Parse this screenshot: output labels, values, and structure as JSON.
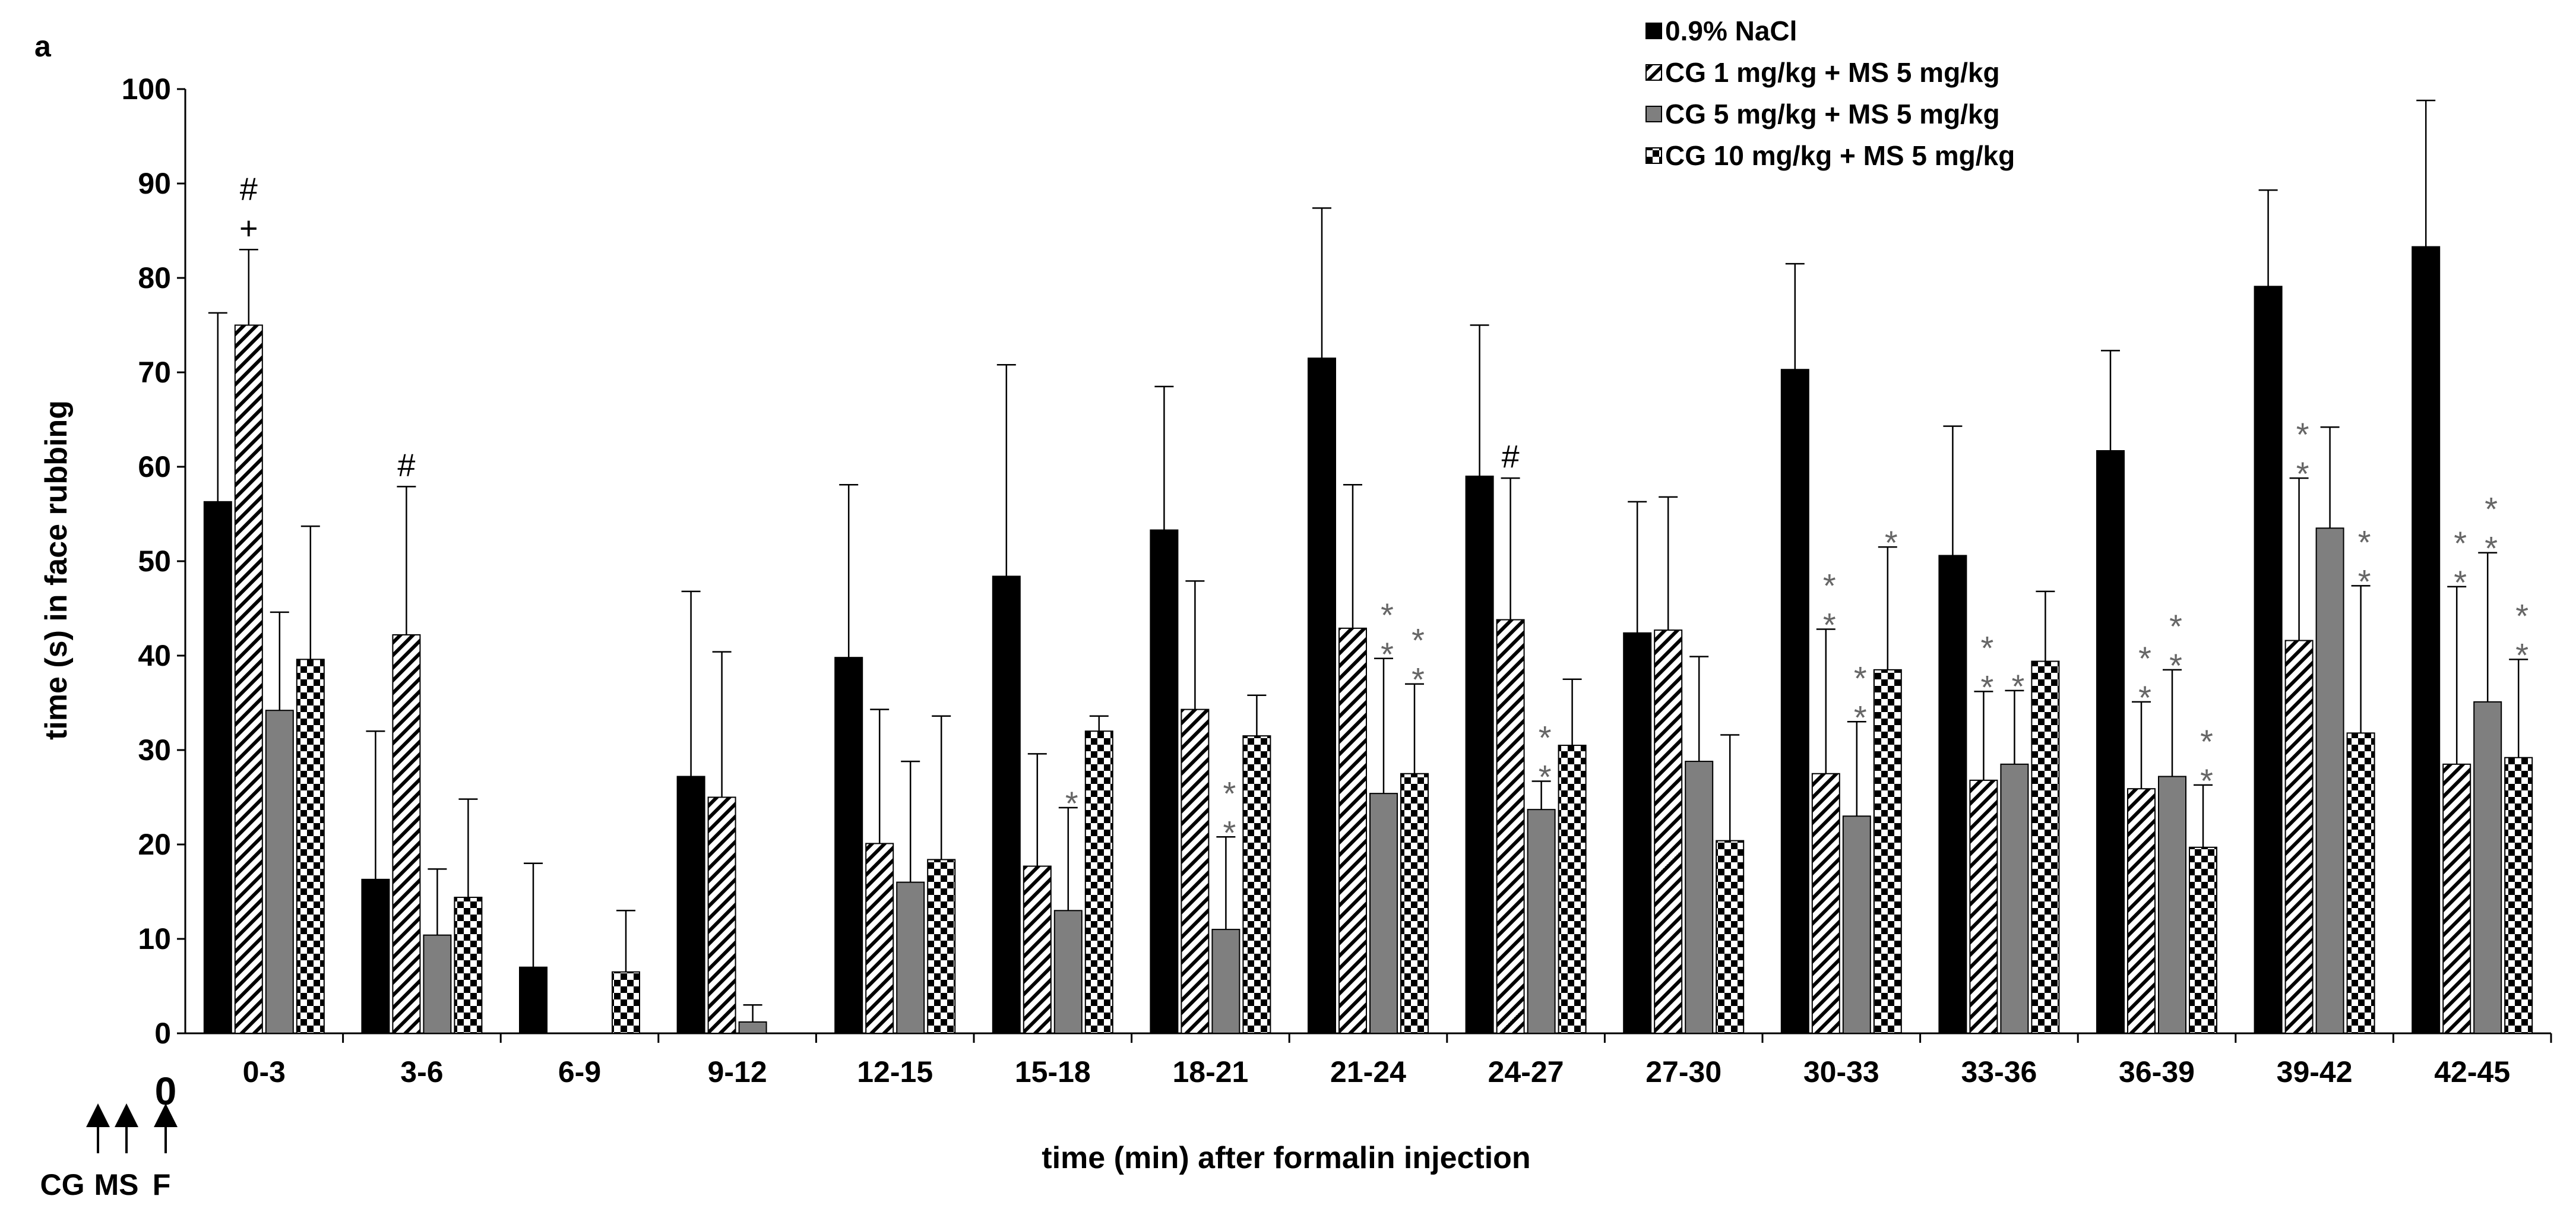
{
  "chart_data": {
    "type": "bar",
    "panel_label": "a",
    "xlabel": "time (min)  after formalin injection",
    "ylabel": "time (s) in face rubbing",
    "ylim": [
      0,
      100
    ],
    "yticks": [
      0,
      10,
      20,
      30,
      40,
      50,
      60,
      70,
      80,
      90,
      100
    ],
    "categories": [
      "0-3",
      "3-6",
      "6-9",
      "9-12",
      "12-15",
      "15-18",
      "18-21",
      "21-24",
      "24-27",
      "27-30",
      "30-33",
      "33-36",
      "36-39",
      "39-42",
      "42-45"
    ],
    "series": [
      {
        "name": "0.9% NaCl",
        "pattern": "solid-black",
        "values": [
          56.3,
          16.3,
          7.0,
          27.2,
          39.8,
          48.4,
          53.3,
          71.5,
          59.0,
          42.4,
          70.3,
          50.6,
          61.7,
          79.1,
          83.3
        ],
        "errors": [
          20.0,
          15.7,
          11.0,
          19.6,
          18.3,
          22.4,
          15.2,
          15.9,
          16.0,
          13.9,
          11.2,
          13.7,
          10.6,
          10.2,
          15.5
        ]
      },
      {
        "name": "CG 1 mg/kg + MS 5 mg/kg",
        "pattern": "diagonal-hatch",
        "values": [
          75.0,
          42.2,
          0,
          25.0,
          20.1,
          17.7,
          34.3,
          42.9,
          43.8,
          42.7,
          27.5,
          26.8,
          25.9,
          41.6,
          28.5
        ],
        "errors": [
          8.0,
          15.7,
          0,
          15.4,
          14.2,
          11.9,
          13.6,
          15.2,
          15.0,
          14.1,
          15.3,
          9.4,
          9.2,
          17.2,
          18.8
        ]
      },
      {
        "name": "CG 5 mg/kg + MS 5 mg/kg",
        "pattern": "solid-gray",
        "values": [
          34.2,
          10.4,
          0,
          1.2,
          16.0,
          13.0,
          11.0,
          25.4,
          23.7,
          28.8,
          23.0,
          28.5,
          27.2,
          53.5,
          35.1
        ],
        "errors": [
          10.4,
          7.0,
          0,
          1.8,
          12.8,
          10.9,
          9.8,
          14.3,
          3.0,
          11.1,
          10.0,
          7.8,
          11.3,
          10.7,
          15.8
        ]
      },
      {
        "name": "CG 10 mg/kg + MS 5 mg/kg",
        "pattern": "checkerboard",
        "values": [
          39.6,
          14.4,
          6.5,
          0,
          18.4,
          32.0,
          31.5,
          27.5,
          30.5,
          20.4,
          38.5,
          39.4,
          19.7,
          31.8,
          29.2
        ],
        "errors": [
          14.1,
          10.4,
          6.5,
          0,
          15.2,
          1.6,
          4.3,
          9.5,
          7.0,
          11.2,
          13.0,
          7.4,
          6.6,
          15.6,
          10.4
        ]
      }
    ],
    "annotations": [
      {
        "category": "0-3",
        "series": 1,
        "symbols": [
          "#",
          "+"
        ]
      },
      {
        "category": "3-6",
        "series": 1,
        "symbols": [
          "#"
        ]
      },
      {
        "category": "15-18",
        "series": 2,
        "symbols": [
          "*"
        ]
      },
      {
        "category": "18-21",
        "series": 2,
        "symbols": [
          "*",
          "*"
        ]
      },
      {
        "category": "21-24",
        "series": 2,
        "symbols": [
          "*",
          "*"
        ]
      },
      {
        "category": "21-24",
        "series": 3,
        "symbols": [
          "*",
          "*"
        ]
      },
      {
        "category": "24-27",
        "series": 1,
        "symbols": [
          "#"
        ]
      },
      {
        "category": "24-27",
        "series": 2,
        "symbols": [
          "*",
          "*"
        ]
      },
      {
        "category": "30-33",
        "series": 1,
        "symbols": [
          "*",
          "*"
        ]
      },
      {
        "category": "30-33",
        "series": 2,
        "symbols": [
          "*",
          "*"
        ]
      },
      {
        "category": "30-33",
        "series": 3,
        "symbols": [
          "*"
        ]
      },
      {
        "category": "33-36",
        "series": 1,
        "symbols": [
          "*",
          "*"
        ]
      },
      {
        "category": "33-36",
        "series": 2,
        "symbols": [
          "*"
        ]
      },
      {
        "category": "36-39",
        "series": 1,
        "symbols": [
          "*",
          "*"
        ]
      },
      {
        "category": "36-39",
        "series": 2,
        "symbols": [
          "*",
          "*"
        ]
      },
      {
        "category": "36-39",
        "series": 3,
        "symbols": [
          "*",
          "*"
        ]
      },
      {
        "category": "39-42",
        "series": 1,
        "symbols": [
          "*",
          "*"
        ]
      },
      {
        "category": "39-42",
        "series": 3,
        "symbols": [
          "*",
          "*"
        ]
      },
      {
        "category": "42-45",
        "series": 1,
        "symbols": [
          "*",
          "*"
        ]
      },
      {
        "category": "42-45",
        "series": 2,
        "symbols": [
          "*",
          "*"
        ]
      },
      {
        "category": "42-45",
        "series": 3,
        "symbols": [
          "*",
          "*"
        ]
      }
    ],
    "legend_position": "top-right",
    "time_origin_label": "0",
    "injection_markers": [
      "CG",
      "MS",
      "F"
    ]
  }
}
